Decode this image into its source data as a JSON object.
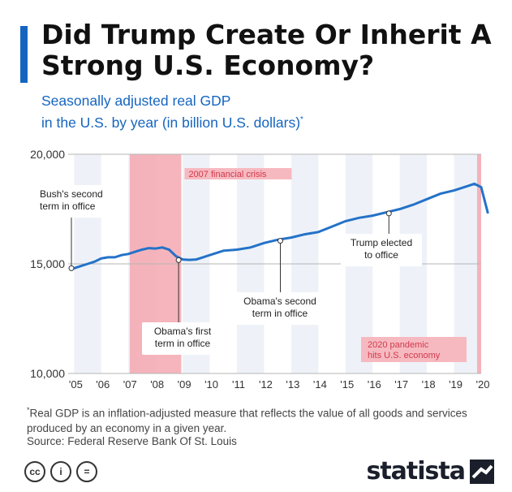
{
  "header": {
    "title": "Did Trump Create Or Inherit A Strong U.S. Economy?",
    "subtitle_line1": "Seasonally adjusted real GDP",
    "subtitle_line2": "in the U.S. by year (in billion U.S. dollars)",
    "subtitle_marker": "*"
  },
  "chart_data": {
    "type": "line",
    "series": [
      {
        "values": [
          [
            2004.9,
            14750
          ],
          [
            2005.0,
            14800
          ],
          [
            2005.25,
            14900
          ],
          [
            2005.5,
            15000
          ],
          [
            2005.75,
            15100
          ],
          [
            2006.0,
            15250
          ],
          [
            2006.25,
            15300
          ],
          [
            2006.5,
            15300
          ],
          [
            2006.75,
            15400
          ],
          [
            2007.0,
            15450
          ],
          [
            2007.25,
            15550
          ],
          [
            2007.5,
            15650
          ],
          [
            2007.75,
            15720
          ],
          [
            2008.0,
            15700
          ],
          [
            2008.25,
            15750
          ],
          [
            2008.5,
            15650
          ],
          [
            2008.75,
            15350
          ],
          [
            2009.0,
            15200
          ],
          [
            2009.25,
            15180
          ],
          [
            2009.5,
            15200
          ],
          [
            2009.75,
            15300
          ],
          [
            2010.0,
            15400
          ],
          [
            2010.5,
            15600
          ],
          [
            2011.0,
            15650
          ],
          [
            2011.5,
            15750
          ],
          [
            2012.0,
            15950
          ],
          [
            2012.5,
            16100
          ],
          [
            2013.0,
            16200
          ],
          [
            2013.5,
            16350
          ],
          [
            2014.0,
            16450
          ],
          [
            2014.5,
            16700
          ],
          [
            2015.0,
            16950
          ],
          [
            2015.5,
            17100
          ],
          [
            2016.0,
            17200
          ],
          [
            2016.5,
            17350
          ],
          [
            2017.0,
            17500
          ],
          [
            2017.5,
            17700
          ],
          [
            2018.0,
            17950
          ],
          [
            2018.5,
            18200
          ],
          [
            2019.0,
            18350
          ],
          [
            2019.5,
            18550
          ],
          [
            2019.75,
            18650
          ],
          [
            2020.0,
            18500
          ],
          [
            2020.25,
            17300
          ]
        ]
      }
    ],
    "x_ticks": [
      "'05",
      "'06",
      "'07",
      "'08",
      "'09",
      "'10",
      "'11",
      "'12",
      "'13",
      "'14",
      "'15",
      "'16",
      "'17",
      "'18",
      "'19",
      "'20"
    ],
    "x_tick_years": [
      2005,
      2006,
      2007,
      2008,
      2009,
      2010,
      2011,
      2012,
      2013,
      2014,
      2015,
      2016,
      2017,
      2018,
      2019,
      2020
    ],
    "y_ticks": [
      "20,000",
      "15,000",
      "10,000"
    ],
    "y_tick_values": [
      20000,
      15000,
      10000
    ],
    "xlim": [
      2004.9,
      2020.0
    ],
    "ylim": [
      10000,
      20000
    ],
    "grid": true,
    "shaded_periods": [
      {
        "label": "2007 financial crisis",
        "start": 2007.05,
        "end": 2008.95
      },
      {
        "label": "2020 pandemic hits U.S. economy",
        "start": 2019.85,
        "end": 2020.0
      }
    ],
    "annotations": [
      {
        "lines": [
          "Bush's second",
          "term in office"
        ],
        "x": 2004.9,
        "y": 14800
      },
      {
        "lines": [
          "Obama's first",
          "term in office"
        ],
        "x": 2008.85,
        "y": 15170
      },
      {
        "lines": [
          "Obama's second",
          "term in office"
        ],
        "x": 2012.6,
        "y": 16050
      },
      {
        "lines": [
          "Trump elected",
          "to office"
        ],
        "x": 2016.6,
        "y": 17300
      }
    ],
    "colors": {
      "line": "#2472c8",
      "shade": "#f4a8b0",
      "band": "#eef2f8",
      "point": "#ffffff"
    }
  },
  "footer": {
    "footnote_marker": "*",
    "footnote": "Real GDP is an inflation-adjusted measure that reflects the value of all goods and services produced by an economy in a given year.",
    "source": "Source: Federal Reserve Bank Of St. Louis",
    "cc_icons": [
      "cc-icon",
      "attribution-icon",
      "no-derivatives-icon"
    ],
    "cc_symbols": [
      "cc",
      "i",
      "="
    ],
    "brand": "statista"
  }
}
